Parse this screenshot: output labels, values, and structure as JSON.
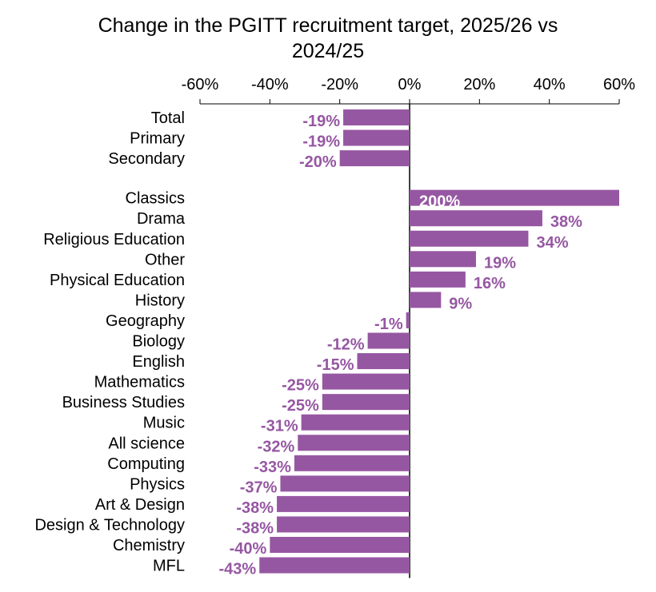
{
  "chart_data": {
    "type": "bar",
    "orientation": "horizontal",
    "title_lines": [
      "Change in the PGITT recruitment target, 2025/26 vs",
      "2024/25"
    ],
    "xlabel": "",
    "ylabel": "",
    "xlim": [
      -60,
      60
    ],
    "x_ticks": [
      -60,
      -40,
      -20,
      0,
      20,
      40,
      60
    ],
    "x_tick_labels": [
      "-60%",
      "-40%",
      "-20%",
      "0%",
      "20%",
      "40%",
      "60%"
    ],
    "axis_position": "top",
    "grid": false,
    "legend": "none",
    "bar_color": "#9657a2",
    "label_color": "#9657a2",
    "inside_label_color": "#ffffff",
    "categories": [
      "Total",
      "Primary",
      "Secondary",
      "Classics",
      "Drama",
      "Religious Education",
      "Other",
      "Physical Education",
      "History",
      "Geography",
      "Biology",
      "English",
      "Mathematics",
      "Business Studies",
      "Music",
      "All science",
      "Computing",
      "Physics",
      "Art & Design",
      "Design & Technology",
      "Chemistry",
      "MFL"
    ],
    "values": [
      -19,
      -19,
      -20,
      200,
      38,
      34,
      19,
      16,
      9,
      -1,
      -12,
      -15,
      -25,
      -25,
      -31,
      -32,
      -33,
      -37,
      -38,
      -38,
      -40,
      -43
    ],
    "value_labels": [
      "-19%",
      "-19%",
      "-20%",
      "200%",
      "38%",
      "34%",
      "19%",
      "16%",
      "9%",
      "-1%",
      "-12%",
      "-15%",
      "-25%",
      "-25%",
      "-31%",
      "-32%",
      "-33%",
      "-37%",
      "-38%",
      "-38%",
      "-40%",
      "-43%"
    ],
    "group_break_after": 2
  }
}
